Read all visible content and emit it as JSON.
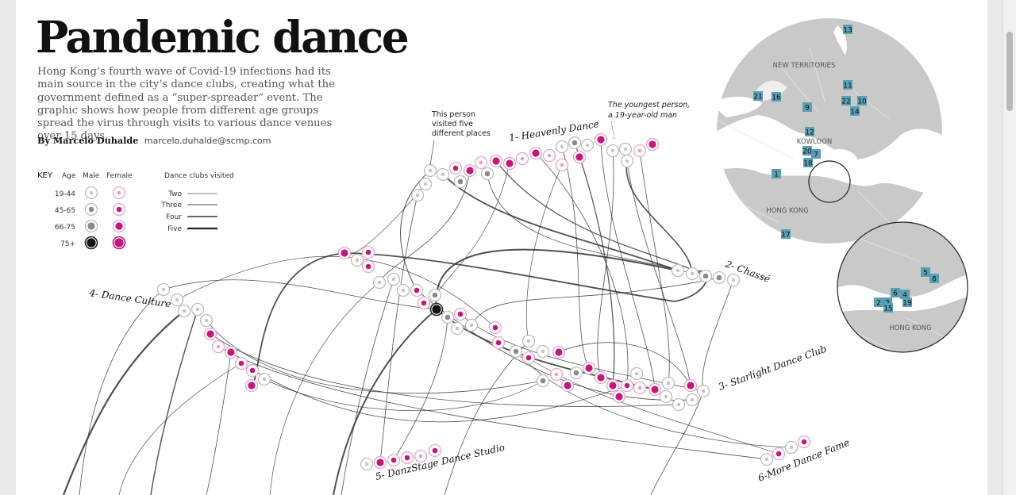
{
  "header": {
    "title": "Pandemic dance",
    "intro": "Hong Kong’s fourth wave of Covid-19 infections had its main source in the city’s dance clubs, creating what the government defined as a “super-spreader” event. The graphic shows how people from different age groups spread the virus through visits to various dance venues over 15 days.",
    "byline_author": "By Marcelo Duhalde",
    "byline_email": "marcelo.duhalde@scmp.com"
  },
  "key": {
    "title": "KEY",
    "col_age": "Age",
    "col_male": "Male",
    "col_female": "Female",
    "age_groups": [
      "19-44",
      "45-65",
      "66-75",
      "75+"
    ],
    "clubs_title": "Dance clubs visited",
    "line_levels": [
      "Two",
      "Three",
      "Four",
      "Five"
    ]
  },
  "venues": [
    {
      "label": "1- Heavenly Dance"
    },
    {
      "label": "2- Chassé"
    },
    {
      "label": "3- Starlight Dance Club"
    },
    {
      "label": "4- Dance Culture"
    },
    {
      "label": "5- DanzStage Dance Studio"
    },
    {
      "label": "6-More Dance Fame"
    }
  ],
  "annotations": {
    "five_places": [
      "This person",
      "visited five",
      "different places"
    ],
    "youngest": [
      "The youngest person,",
      "a 19-year-old man"
    ]
  },
  "map_main": {
    "labels": {
      "new_territories": "NEW TERRITORIES",
      "kowloon": "KOWLOON",
      "hong_kong": "HONG KONG"
    },
    "markers": [
      "13",
      "11",
      "21",
      "16",
      "9",
      "22",
      "10",
      "14",
      "12",
      "20",
      "7",
      "18",
      "1",
      "17"
    ]
  },
  "map_inset": {
    "label": "HONG KONG",
    "markers": [
      "5",
      "8",
      "6",
      "4",
      "3",
      "2",
      "19",
      "15"
    ]
  },
  "colors": {
    "male": "#8a8a8a",
    "female": "#c2187c",
    "line": "#333333",
    "land": "#cccccc",
    "marker": "#5a9fb3"
  }
}
